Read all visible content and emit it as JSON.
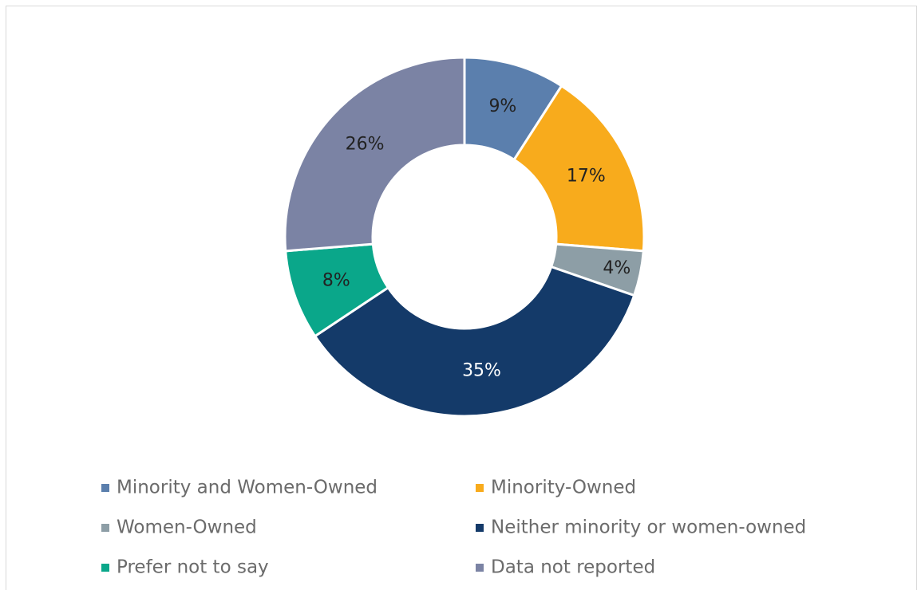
{
  "chart_data": {
    "type": "donut",
    "categories": [
      "Minority and Women-Owned",
      "Minority-Owned",
      "Women-Owned",
      "Neither minority or women-owned",
      "Prefer not to say",
      "Data not reported"
    ],
    "values": [
      9,
      17,
      4,
      35,
      8,
      26
    ],
    "value_labels": [
      "9%",
      "17%",
      "4%",
      "35%",
      "8%",
      "26%"
    ],
    "colors": [
      "#5b7fad",
      "#f8ab1c",
      "#8d9ea6",
      "#143a69",
      "#0aa78a",
      "#7b83a4"
    ],
    "label_colors": [
      "#222222",
      "#222222",
      "#222222",
      "#ffffff",
      "#222222",
      "#222222"
    ],
    "legend": "bottom"
  }
}
